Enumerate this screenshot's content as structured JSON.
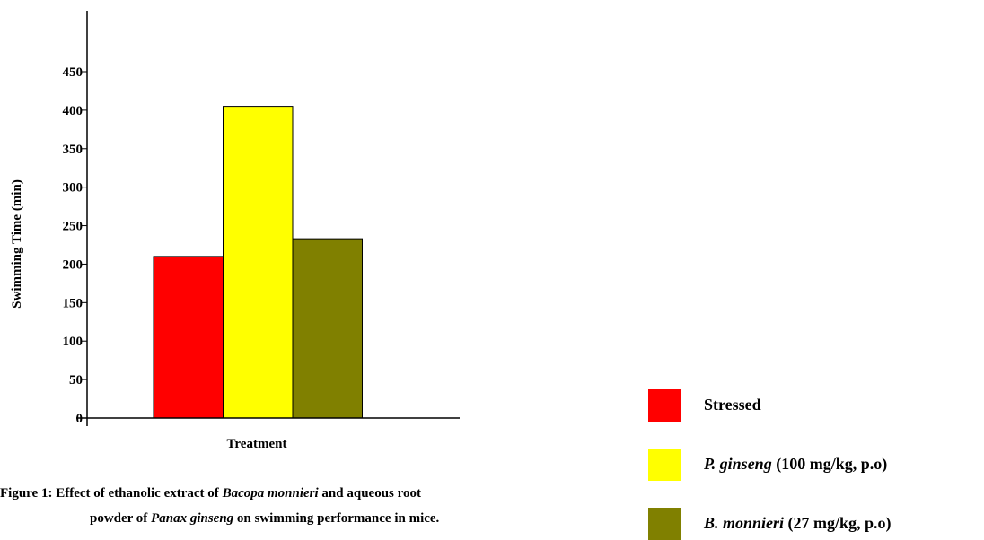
{
  "chart_data": {
    "type": "bar",
    "categories": [
      "Stressed",
      "P. ginseng (100 mg/kg, p.o)",
      "B. monnieri (27 mg/kg, p.o)"
    ],
    "values": [
      210,
      405,
      233
    ],
    "colors": [
      "#ff0000",
      "#ffff00",
      "#808000"
    ],
    "ylabel": "Swimming Time (min)",
    "xlabel": "Treatment",
    "ylim": [
      0,
      450
    ],
    "yticks": [
      "0",
      "50",
      "100",
      "150",
      "200",
      "250",
      "300",
      "350",
      "400",
      "450"
    ],
    "grid": false,
    "legend_position": "bottom-right"
  },
  "legend": {
    "items": [
      {
        "name": "Stressed",
        "dose": ""
      },
      {
        "name": "P. ginseng",
        "dose": " (100 mg/kg, p.o)"
      },
      {
        "name": "B. monnieri",
        "dose": " (27 mg/kg, p.o)"
      }
    ]
  },
  "caption": {
    "line1_a": "Figure 1: Effect of ethanolic extract of ",
    "line1_b": "Bacopa monnieri",
    "line1_c": " and aqueous root",
    "line2_a": "powder of ",
    "line2_b": "Panax ginseng",
    "line2_c": " on swimming performance in mice."
  }
}
